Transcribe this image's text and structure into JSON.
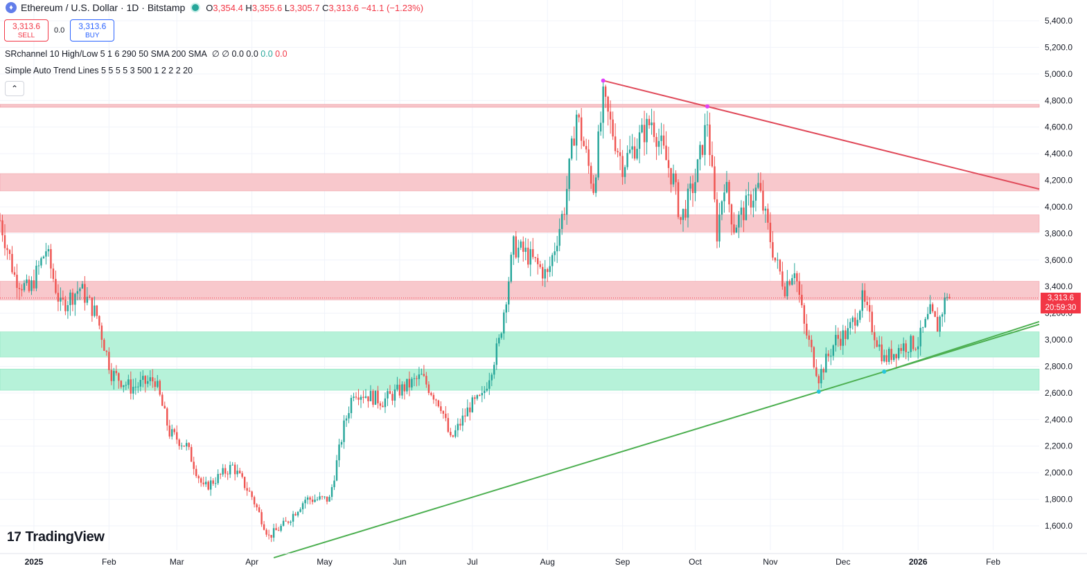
{
  "header": {
    "symbol_title": "Ethereum / U.S. Dollar · 1D · Bitstamp",
    "open_label": "O",
    "open": "3,354.4",
    "high_label": "H",
    "high": "3,355.6",
    "low_label": "L",
    "low": "3,305.7",
    "close_label": "C",
    "close": "3,313.6",
    "change": "−41.1 (−1.23%)"
  },
  "trade": {
    "sell_price": "3,313.6",
    "sell_label": "SELL",
    "spread": "0.0",
    "buy_price": "3,313.6",
    "buy_label": "BUY"
  },
  "indicators": {
    "sr_name": "SRchannel",
    "sr_params": "10 High/Low 5 1 6 290 50 SMA 200 SMA",
    "sr_vals_a": "∅ ∅ 0.0 0.0",
    "sr_val_g": "0.0",
    "sr_val_r": "0.0",
    "trend_name": "Simple Auto Trend Lines",
    "trend_params": "5 5 5 5 3 500 1 2 2 2 20"
  },
  "logo": {
    "mark": "17",
    "text": "TradingView"
  },
  "last_price": {
    "price": "3,313.6",
    "countdown": "20:59:30"
  },
  "colors": {
    "up": "#26a69a",
    "down": "#ef5350",
    "resistance_fill": "#f8c8cc",
    "support_fill": "#b6f2d9",
    "down_trend": "#e04a5a",
    "up_trend": "#4caf50"
  },
  "chart_data": {
    "type": "candlestick",
    "title": "Ethereum / U.S. Dollar · 1D · Bitstamp",
    "ylim": [
      1450,
      5450
    ],
    "y_ticks": [
      "5,400.0",
      "5,200.0",
      "5,000.0",
      "4,800.0",
      "4,600.0",
      "4,400.0",
      "4,200.0",
      "4,000.0",
      "3,800.0",
      "3,600.0",
      "3,400.0",
      "3,200.0",
      "3,000.0",
      "2,800.0",
      "2,600.0",
      "2,400.0",
      "2,200.0",
      "2,000.0",
      "1,800.0",
      "1,600.0"
    ],
    "x_ticks": [
      "2025",
      "Feb",
      "Mar",
      "Apr",
      "May",
      "Jun",
      "Jul",
      "Aug",
      "Sep",
      "Oct",
      "Nov",
      "Dec",
      "2026",
      "Feb"
    ],
    "x_tick_dates": [
      "2025-01-01",
      "2025-02-01",
      "2025-03-01",
      "2025-04-01",
      "2025-05-01",
      "2025-06-01",
      "2025-07-01",
      "2025-08-01",
      "2025-09-01",
      "2025-10-01",
      "2025-11-01",
      "2025-12-01",
      "2026-01-01",
      "2026-02-01"
    ],
    "x_range": [
      "2024-12-18",
      "2026-02-20"
    ],
    "price_path": [
      {
        "d": "2024-12-18",
        "p": 3900
      },
      {
        "d": "2024-12-24",
        "p": 3480
      },
      {
        "d": "2024-12-30",
        "p": 3360
      },
      {
        "d": "2025-01-06",
        "p": 3680
      },
      {
        "d": "2025-01-12",
        "p": 3250
      },
      {
        "d": "2025-01-20",
        "p": 3390
      },
      {
        "d": "2025-01-27",
        "p": 3180
      },
      {
        "d": "2025-02-02",
        "p": 2750
      },
      {
        "d": "2025-02-10",
        "p": 2640
      },
      {
        "d": "2025-02-20",
        "p": 2700
      },
      {
        "d": "2025-02-26",
        "p": 2300
      },
      {
        "d": "2025-03-05",
        "p": 2200
      },
      {
        "d": "2025-03-12",
        "p": 1880
      },
      {
        "d": "2025-03-24",
        "p": 2050
      },
      {
        "d": "2025-04-01",
        "p": 1820
      },
      {
        "d": "2025-04-08",
        "p": 1520
      },
      {
        "d": "2025-04-15",
        "p": 1620
      },
      {
        "d": "2025-04-23",
        "p": 1800
      },
      {
        "d": "2025-05-03",
        "p": 1800
      },
      {
        "d": "2025-05-09",
        "p": 2350
      },
      {
        "d": "2025-05-13",
        "p": 2620
      },
      {
        "d": "2025-05-25",
        "p": 2540
      },
      {
        "d": "2025-06-10",
        "p": 2720
      },
      {
        "d": "2025-06-18",
        "p": 2510
      },
      {
        "d": "2025-06-22",
        "p": 2240
      },
      {
        "d": "2025-06-30",
        "p": 2500
      },
      {
        "d": "2025-07-05",
        "p": 2560
      },
      {
        "d": "2025-07-12",
        "p": 2980
      },
      {
        "d": "2025-07-18",
        "p": 3700
      },
      {
        "d": "2025-07-23",
        "p": 3650
      },
      {
        "d": "2025-08-01",
        "p": 3480
      },
      {
        "d": "2025-08-04",
        "p": 3700
      },
      {
        "d": "2025-08-08",
        "p": 4000
      },
      {
        "d": "2025-08-13",
        "p": 4700
      },
      {
        "d": "2025-08-18",
        "p": 4300
      },
      {
        "d": "2025-08-20",
        "p": 4150
      },
      {
        "d": "2025-08-24",
        "p": 4800
      },
      {
        "d": "2025-09-01",
        "p": 4320
      },
      {
        "d": "2025-09-13",
        "p": 4650
      },
      {
        "d": "2025-09-22",
        "p": 4200
      },
      {
        "d": "2025-09-25",
        "p": 3900
      },
      {
        "d": "2025-10-01",
        "p": 4200
      },
      {
        "d": "2025-10-06",
        "p": 4650
      },
      {
        "d": "2025-10-10",
        "p": 3800
      },
      {
        "d": "2025-10-13",
        "p": 4200
      },
      {
        "d": "2025-10-17",
        "p": 3850
      },
      {
        "d": "2025-10-27",
        "p": 4150
      },
      {
        "d": "2025-11-03",
        "p": 3600
      },
      {
        "d": "2025-11-07",
        "p": 3400
      },
      {
        "d": "2025-11-11",
        "p": 3550
      },
      {
        "d": "2025-11-15",
        "p": 3100
      },
      {
        "d": "2025-11-21",
        "p": 2720
      },
      {
        "d": "2025-11-28",
        "p": 3000
      },
      {
        "d": "2025-12-03",
        "p": 3050
      },
      {
        "d": "2025-12-09",
        "p": 3300
      },
      {
        "d": "2025-12-15",
        "p": 3000
      },
      {
        "d": "2025-12-18",
        "p": 2850
      },
      {
        "d": "2025-12-25",
        "p": 2950
      },
      {
        "d": "2026-01-01",
        "p": 2980
      },
      {
        "d": "2026-01-06",
        "p": 3200
      },
      {
        "d": "2026-01-09",
        "p": 3100
      },
      {
        "d": "2026-01-13",
        "p": 3350
      },
      {
        "d": "2026-01-14",
        "p": 3314
      }
    ],
    "resistance_zones": [
      [
        4120,
        4250
      ],
      [
        3810,
        3940
      ],
      [
        3300,
        3440
      ]
    ],
    "support_zones": [
      [
        2870,
        3060
      ],
      [
        2620,
        2780
      ]
    ],
    "resistance_line_y": 4760,
    "trend_lines": [
      {
        "name": "down",
        "points": [
          {
            "d": "2025-08-24",
            "p": 4950
          },
          {
            "d": "2025-10-06",
            "p": 4755
          }
        ],
        "extend_to": "2026-02-20"
      },
      {
        "name": "up",
        "points": [
          {
            "d": "2025-11-21",
            "p": 2610
          },
          {
            "d": "2025-12-18",
            "p": 2760
          }
        ],
        "from": "2025-04-10",
        "extend_to": "2026-02-20"
      }
    ],
    "last_price": 3313.6,
    "grid": true
  }
}
